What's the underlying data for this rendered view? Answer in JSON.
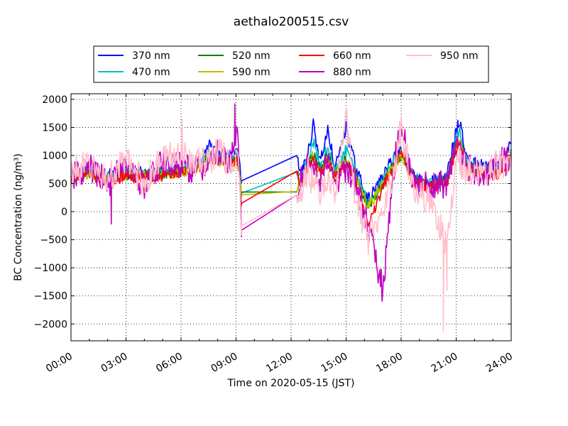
{
  "chart_data": {
    "type": "line",
    "title": "aethalo200515.csv",
    "xlabel": "Time on 2020-05-15 (JST)",
    "ylabel": "BC Concentration (ng/m³)",
    "xlim": [
      0,
      24
    ],
    "ylim": [
      -2300,
      2100
    ],
    "x_ticks": [
      "00:00",
      "03:00",
      "06:00",
      "09:00",
      "12:00",
      "15:00",
      "18:00",
      "21:00",
      "24:00"
    ],
    "y_ticks": [
      -2000,
      -1500,
      -1000,
      -500,
      0,
      500,
      1000,
      1500,
      2000
    ],
    "grid": true,
    "legend_position": "top-center",
    "series": [
      {
        "name": "370 nm",
        "color": "#0000ff"
      },
      {
        "name": "470 nm",
        "color": "#00bfbf"
      },
      {
        "name": "520 nm",
        "color": "#008000"
      },
      {
        "name": "590 nm",
        "color": "#bfbf00"
      },
      {
        "name": "660 nm",
        "color": "#ff0000"
      },
      {
        "name": "880 nm",
        "color": "#bf00bf"
      },
      {
        "name": "950 nm",
        "color": "#ffc0cb"
      }
    ],
    "anchors": {
      "370 nm": [
        [
          0,
          650
        ],
        [
          1,
          720
        ],
        [
          2,
          640
        ],
        [
          3,
          700
        ],
        [
          4,
          690
        ],
        [
          5,
          720
        ],
        [
          6,
          760
        ],
        [
          7,
          820
        ],
        [
          7.5,
          1200
        ],
        [
          8,
          1000
        ],
        [
          8.7,
          1000
        ],
        [
          9.1,
          1050
        ],
        [
          9.3,
          550
        ],
        [
          12.3,
          1000
        ],
        [
          12.5,
          650
        ],
        [
          12.9,
          1000
        ],
        [
          13.2,
          1550
        ],
        [
          13.6,
          900
        ],
        [
          14,
          1450
        ],
        [
          14.4,
          750
        ],
        [
          15,
          1500
        ],
        [
          15.5,
          800
        ],
        [
          16.2,
          200
        ],
        [
          17,
          600
        ],
        [
          17.6,
          1000
        ],
        [
          18,
          1100
        ],
        [
          18.7,
          650
        ],
        [
          19.5,
          500
        ],
        [
          20.5,
          650
        ],
        [
          21,
          1450
        ],
        [
          21.2,
          1600
        ],
        [
          21.6,
          900
        ],
        [
          22.5,
          800
        ],
        [
          23.3,
          800
        ],
        [
          24,
          1200
        ]
      ],
      "470 nm": [
        [
          0,
          620
        ],
        [
          1,
          690
        ],
        [
          2,
          620
        ],
        [
          3,
          680
        ],
        [
          4,
          670
        ],
        [
          5,
          700
        ],
        [
          6,
          740
        ],
        [
          7,
          800
        ],
        [
          7.5,
          1050
        ],
        [
          8,
          950
        ],
        [
          8.7,
          950
        ],
        [
          9.1,
          1000
        ],
        [
          9.3,
          330
        ],
        [
          12.3,
          700
        ],
        [
          12.5,
          600
        ],
        [
          12.9,
          900
        ],
        [
          13.2,
          1250
        ],
        [
          13.6,
          800
        ],
        [
          14,
          1150
        ],
        [
          14.4,
          700
        ],
        [
          15,
          1100
        ],
        [
          15.5,
          700
        ],
        [
          16.2,
          150
        ],
        [
          17,
          550
        ],
        [
          17.6,
          900
        ],
        [
          18,
          1050
        ],
        [
          18.7,
          600
        ],
        [
          19.5,
          480
        ],
        [
          20.5,
          600
        ],
        [
          21,
          1300
        ],
        [
          21.2,
          1450
        ],
        [
          21.6,
          850
        ],
        [
          22.5,
          750
        ],
        [
          23.3,
          750
        ],
        [
          24,
          1100
        ]
      ],
      "520 nm": [
        [
          0,
          600
        ],
        [
          1,
          670
        ],
        [
          2,
          600
        ],
        [
          3,
          660
        ],
        [
          4,
          650
        ],
        [
          5,
          680
        ],
        [
          6,
          720
        ],
        [
          7,
          780
        ],
        [
          7.5,
          1000
        ],
        [
          8,
          900
        ],
        [
          8.7,
          900
        ],
        [
          9.1,
          950
        ],
        [
          9.3,
          350
        ],
        [
          12.3,
          350
        ],
        [
          12.5,
          550
        ],
        [
          12.9,
          800
        ],
        [
          13.2,
          1050
        ],
        [
          13.6,
          700
        ],
        [
          14,
          1000
        ],
        [
          14.4,
          650
        ],
        [
          15,
          950
        ],
        [
          15.5,
          650
        ],
        [
          16.2,
          100
        ],
        [
          17,
          500
        ],
        [
          17.6,
          850
        ],
        [
          18,
          1000
        ],
        [
          18.7,
          550
        ],
        [
          19.5,
          450
        ],
        [
          20.5,
          550
        ],
        [
          21,
          1200
        ],
        [
          21.2,
          1300
        ],
        [
          21.6,
          800
        ],
        [
          22.5,
          700
        ],
        [
          23.3,
          700
        ],
        [
          24,
          1050
        ]
      ],
      "590 nm": [
        [
          0,
          590
        ],
        [
          1,
          650
        ],
        [
          2,
          580
        ],
        [
          3,
          640
        ],
        [
          4,
          630
        ],
        [
          5,
          660
        ],
        [
          6,
          700
        ],
        [
          7,
          760
        ],
        [
          7.5,
          980
        ],
        [
          8,
          880
        ],
        [
          8.7,
          880
        ],
        [
          9.1,
          920
        ],
        [
          9.3,
          300
        ],
        [
          12.3,
          360
        ],
        [
          12.5,
          530
        ],
        [
          12.9,
          780
        ],
        [
          13.2,
          1000
        ],
        [
          13.6,
          680
        ],
        [
          14,
          950
        ],
        [
          14.4,
          620
        ],
        [
          15,
          900
        ],
        [
          15.5,
          620
        ],
        [
          16.2,
          80
        ],
        [
          17,
          480
        ],
        [
          17.6,
          820
        ],
        [
          18,
          980
        ],
        [
          18.7,
          530
        ],
        [
          19.5,
          440
        ],
        [
          20.5,
          530
        ],
        [
          21,
          1150
        ],
        [
          21.2,
          1250
        ],
        [
          21.6,
          780
        ],
        [
          22.5,
          680
        ],
        [
          23.3,
          680
        ],
        [
          24,
          1000
        ]
      ],
      "660 nm": [
        [
          0,
          580
        ],
        [
          1,
          640
        ],
        [
          2,
          570
        ],
        [
          3,
          630
        ],
        [
          4,
          620
        ],
        [
          5,
          650
        ],
        [
          6,
          690
        ],
        [
          7,
          740
        ],
        [
          7.5,
          950
        ],
        [
          8,
          860
        ],
        [
          8.7,
          860
        ],
        [
          9.1,
          900
        ],
        [
          9.3,
          150
        ],
        [
          12.3,
          720
        ],
        [
          12.5,
          520
        ],
        [
          12.9,
          760
        ],
        [
          13.2,
          950
        ],
        [
          13.6,
          660
        ],
        [
          14,
          900
        ],
        [
          14.4,
          600
        ],
        [
          15,
          850
        ],
        [
          15.5,
          600
        ],
        [
          16.2,
          -300
        ],
        [
          17,
          460
        ],
        [
          17.6,
          800
        ],
        [
          18,
          1100
        ],
        [
          18.7,
          520
        ],
        [
          19.5,
          430
        ],
        [
          20.5,
          520
        ],
        [
          21,
          1100
        ],
        [
          21.2,
          1200
        ],
        [
          21.6,
          760
        ],
        [
          22.5,
          660
        ],
        [
          23.3,
          660
        ],
        [
          24,
          950
        ]
      ],
      "880 nm": [
        [
          0,
          600
        ],
        [
          1,
          780
        ],
        [
          2,
          500
        ],
        [
          3,
          850
        ],
        [
          4,
          450
        ],
        [
          5,
          900
        ],
        [
          6,
          800
        ],
        [
          7,
          750
        ],
        [
          7.5,
          850
        ],
        [
          8,
          1050
        ],
        [
          8.7,
          900
        ],
        [
          9.1,
          1400
        ],
        [
          9.3,
          -330
        ],
        [
          12.3,
          300
        ],
        [
          12.5,
          550
        ],
        [
          12.9,
          900
        ],
        [
          13.2,
          800
        ],
        [
          13.6,
          600
        ],
        [
          14,
          850
        ],
        [
          14.4,
          500
        ],
        [
          15,
          800
        ],
        [
          15.5,
          500
        ],
        [
          16.2,
          -300
        ],
        [
          17,
          -1400
        ],
        [
          17.6,
          800
        ],
        [
          18,
          1500
        ],
        [
          18.7,
          500
        ],
        [
          19.5,
          450
        ],
        [
          20.5,
          500
        ],
        [
          21,
          1100
        ],
        [
          21.2,
          1200
        ],
        [
          21.6,
          800
        ],
        [
          22.5,
          650
        ],
        [
          23.3,
          900
        ],
        [
          24,
          900
        ]
      ],
      "950 nm": [
        [
          0,
          700
        ],
        [
          1,
          820
        ],
        [
          2,
          560
        ],
        [
          3,
          900
        ],
        [
          4,
          500
        ],
        [
          5,
          950
        ],
        [
          6,
          1050
        ],
        [
          7,
          850
        ],
        [
          7.5,
          900
        ],
        [
          8,
          1100
        ],
        [
          8.7,
          850
        ],
        [
          9.1,
          900
        ],
        [
          9.3,
          -250
        ],
        [
          12.3,
          300
        ],
        [
          12.5,
          300
        ],
        [
          12.9,
          700
        ],
        [
          13.2,
          500
        ],
        [
          13.6,
          350
        ],
        [
          14,
          600
        ],
        [
          14.4,
          250
        ],
        [
          15,
          1700
        ],
        [
          15.5,
          300
        ],
        [
          16.2,
          -500
        ],
        [
          17,
          100
        ],
        [
          17.6,
          700
        ],
        [
          18,
          1500
        ],
        [
          18.7,
          400
        ],
        [
          19.5,
          200
        ],
        [
          20.5,
          -600
        ],
        [
          21,
          1000
        ],
        [
          21.2,
          900
        ],
        [
          21.6,
          700
        ],
        [
          22.5,
          650
        ],
        [
          23.3,
          850
        ],
        [
          24,
          900
        ]
      ]
    },
    "spikes": {
      "880 nm": [
        [
          8.93,
          1920
        ],
        [
          17.0,
          -1400
        ],
        [
          2.2,
          -220
        ]
      ],
      "950 nm": [
        [
          20.3,
          -2130
        ],
        [
          20.5,
          -1400
        ],
        [
          15.0,
          1720
        ],
        [
          6.05,
          1650
        ]
      ]
    }
  }
}
